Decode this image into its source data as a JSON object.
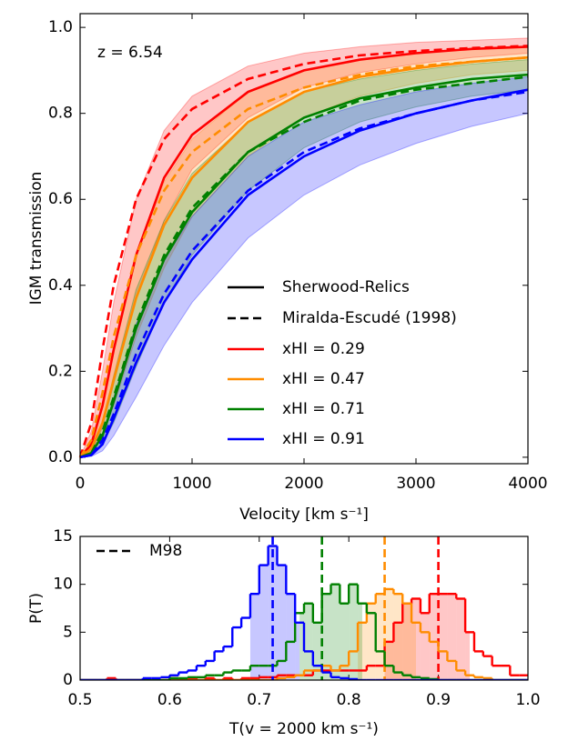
{
  "chart_data": [
    {
      "type": "line",
      "annotation": "z = 6.54",
      "xlabel": "Velocity [km s⁻¹]",
      "ylabel": "IGM transmission",
      "x": [
        0,
        100,
        200,
        300,
        500,
        750,
        1000,
        1500,
        2000,
        2500,
        3000,
        3500,
        4000
      ],
      "xlim": [
        0,
        4000
      ],
      "xticks": [
        0,
        1000,
        2000,
        3000,
        4000
      ],
      "ylim": [
        -0.015,
        1.032
      ],
      "yticks": [
        {
          "value": 0,
          "label": "0.0"
        },
        0.2,
        0.4,
        0.6,
        0.8,
        {
          "value": 1,
          "label": "1.0"
        }
      ],
      "legend_styles": [
        {
          "name": "Sherwood-Relics",
          "dashed": false
        },
        {
          "name": "Miralda-Escudé (1998)",
          "dashed": true
        }
      ],
      "series": [
        {
          "name": "xHI = 0.29",
          "color": "#ff0000",
          "values": [
            0,
            0.03,
            0.12,
            0.25,
            0.47,
            0.65,
            0.75,
            0.85,
            0.9,
            0.925,
            0.94,
            0.95,
            0.955
          ],
          "dashed_values": [
            0,
            0.08,
            0.25,
            0.4,
            0.6,
            0.74,
            0.81,
            0.88,
            0.915,
            0.935,
            0.945,
            0.952,
            0.957
          ],
          "band_low": [
            0,
            0.01,
            0.07,
            0.17,
            0.37,
            0.55,
            0.67,
            0.79,
            0.86,
            0.895,
            0.915,
            0.93,
            0.94
          ],
          "band_high": [
            0,
            0.06,
            0.2,
            0.36,
            0.6,
            0.76,
            0.84,
            0.91,
            0.94,
            0.955,
            0.965,
            0.97,
            0.975
          ]
        },
        {
          "name": "xHI = 0.47",
          "color": "#ff8c00",
          "values": [
            0,
            0.02,
            0.08,
            0.18,
            0.37,
            0.54,
            0.65,
            0.78,
            0.85,
            0.885,
            0.905,
            0.92,
            0.93
          ],
          "dashed_values": [
            0,
            0.04,
            0.15,
            0.28,
            0.47,
            0.62,
            0.71,
            0.81,
            0.86,
            0.89,
            0.91,
            0.92,
            0.93
          ],
          "band_low": [
            0,
            0.01,
            0.05,
            0.12,
            0.28,
            0.44,
            0.56,
            0.7,
            0.79,
            0.84,
            0.87,
            0.89,
            0.9
          ],
          "band_high": [
            0,
            0.04,
            0.12,
            0.25,
            0.47,
            0.64,
            0.74,
            0.85,
            0.9,
            0.925,
            0.94,
            0.95,
            0.955
          ]
        },
        {
          "name": "xHI = 0.71",
          "color": "#008000",
          "values": [
            0,
            0.01,
            0.05,
            0.13,
            0.3,
            0.46,
            0.57,
            0.71,
            0.79,
            0.835,
            0.86,
            0.88,
            0.89
          ],
          "dashed_values": [
            0,
            0.01,
            0.06,
            0.14,
            0.31,
            0.47,
            0.58,
            0.71,
            0.78,
            0.83,
            0.855,
            0.87,
            0.885
          ],
          "band_low": [
            0,
            0.005,
            0.03,
            0.08,
            0.21,
            0.36,
            0.47,
            0.62,
            0.72,
            0.78,
            0.815,
            0.84,
            0.855
          ],
          "band_high": [
            0,
            0.02,
            0.08,
            0.19,
            0.39,
            0.55,
            0.66,
            0.78,
            0.85,
            0.88,
            0.9,
            0.915,
            0.925
          ]
        },
        {
          "name": "xHI = 0.91",
          "color": "#0000ff",
          "values": [
            0,
            0.005,
            0.03,
            0.09,
            0.22,
            0.36,
            0.46,
            0.61,
            0.7,
            0.76,
            0.8,
            0.83,
            0.855
          ],
          "dashed_values": [
            0,
            0.005,
            0.04,
            0.1,
            0.24,
            0.38,
            0.48,
            0.62,
            0.71,
            0.765,
            0.8,
            0.83,
            0.85
          ],
          "band_low": [
            0,
            0.002,
            0.015,
            0.05,
            0.14,
            0.26,
            0.36,
            0.51,
            0.61,
            0.68,
            0.73,
            0.77,
            0.8
          ],
          "band_high": [
            0,
            0.01,
            0.05,
            0.14,
            0.31,
            0.46,
            0.56,
            0.7,
            0.78,
            0.82,
            0.85,
            0.87,
            0.885
          ]
        }
      ]
    },
    {
      "type": "histogram",
      "xlabel": "T(v = 2000 km s⁻¹)",
      "ylabel": "P(T)",
      "legend": "M98",
      "bins": [
        0.5,
        0.51,
        0.52,
        0.53,
        0.54,
        0.55,
        0.56,
        0.57,
        0.58,
        0.59,
        0.6,
        0.61,
        0.62,
        0.63,
        0.64,
        0.65,
        0.66,
        0.67,
        0.68,
        0.69,
        0.7,
        0.71,
        0.72,
        0.73,
        0.74,
        0.75,
        0.76,
        0.77,
        0.78,
        0.79,
        0.8,
        0.81,
        0.82,
        0.83,
        0.84,
        0.85,
        0.86,
        0.87,
        0.88,
        0.89,
        0.9,
        0.91,
        0.92,
        0.93,
        0.94,
        0.95,
        0.96,
        0.97,
        0.98,
        0.99,
        1.0
      ],
      "xlim": [
        0.5,
        1.0
      ],
      "xticks": [
        0.5,
        0.6,
        0.7,
        0.8,
        0.9,
        {
          "value": 1,
          "label": "1.0"
        }
      ],
      "ylim": [
        0,
        15
      ],
      "yticks": [
        0,
        5,
        10,
        15
      ],
      "series": [
        {
          "color": "#ff0000",
          "shade": [
            0.84,
            0.935
          ],
          "m98": 0.9,
          "values": [
            0,
            0,
            0,
            0.2,
            0,
            0,
            0,
            0,
            0,
            0,
            0.2,
            0,
            0.2,
            0,
            0.2,
            0,
            0.2,
            0,
            0.2,
            0.2,
            0.3,
            0.3,
            0.5,
            0.5,
            0.5,
            0.5,
            1,
            1,
            1,
            1,
            1,
            1,
            1.5,
            1.5,
            4,
            6,
            8,
            8.5,
            7,
            9,
            9,
            9,
            8.5,
            5,
            3,
            2.5,
            1.5,
            1.5,
            0.5,
            0.5
          ]
        },
        {
          "color": "#ff8c00",
          "shade": [
            0.81,
            0.875
          ],
          "m98": 0.84,
          "values": [
            0,
            0,
            0,
            0,
            0,
            0,
            0,
            0,
            0,
            0,
            0,
            0,
            0,
            0,
            0,
            0,
            0,
            0,
            0,
            0,
            0,
            0,
            0.2,
            0.3,
            0.5,
            1,
            1,
            1.5,
            1,
            1.5,
            3,
            6,
            8,
            9,
            9.5,
            9,
            8,
            6,
            5,
            4,
            3,
            2,
            1,
            0.5,
            0.3,
            0.2,
            0,
            0,
            0,
            0
          ]
        },
        {
          "color": "#008000",
          "shade": [
            0.745,
            0.815
          ],
          "m98": 0.77,
          "values": [
            0,
            0,
            0,
            0,
            0,
            0,
            0,
            0,
            0,
            0,
            0.2,
            0.2,
            0.3,
            0.3,
            0.5,
            0.5,
            0.8,
            1,
            1,
            1.5,
            1.5,
            1.5,
            2,
            4,
            7,
            8,
            6,
            9,
            10,
            8,
            10,
            8,
            7,
            3,
            1.5,
            0.8,
            0.5,
            0.3,
            0.2,
            0.1,
            0,
            0,
            0,
            0,
            0,
            0,
            0,
            0,
            0,
            0
          ]
        },
        {
          "color": "#0000ff",
          "shade": [
            0.69,
            0.745
          ],
          "m98": 0.715,
          "values": [
            0,
            0,
            0,
            0,
            0,
            0,
            0,
            0.2,
            0.2,
            0.3,
            0.5,
            0.8,
            1,
            1.5,
            2,
            3,
            3.5,
            5.5,
            6.5,
            9,
            12,
            14,
            12,
            9,
            6,
            3,
            1.5,
            0.8,
            0.3,
            0.2,
            0.1,
            0,
            0,
            0,
            0,
            0,
            0,
            0,
            0,
            0,
            0,
            0,
            0,
            0,
            0,
            0,
            0,
            0,
            0,
            0
          ]
        }
      ]
    }
  ]
}
